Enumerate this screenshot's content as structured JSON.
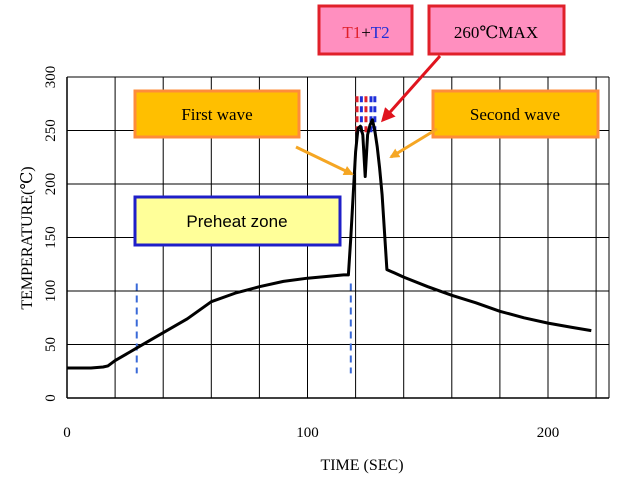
{
  "chart_data": {
    "type": "line",
    "title": "",
    "xlabel": "TIME (SEC)",
    "ylabel": "TEMPERATURE(℃)",
    "xlim": [
      0,
      220
    ],
    "ylim": [
      0,
      300
    ],
    "x_ticks": [
      0,
      100,
      200
    ],
    "y_ticks": [
      0,
      50,
      100,
      150,
      200,
      250,
      300
    ],
    "grid": true,
    "series": [
      {
        "name": "",
        "x": [
          0,
          5,
          10,
          15,
          17,
          20,
          30,
          40,
          50,
          60,
          70,
          75,
          80,
          90,
          100,
          105,
          110,
          115,
          117,
          118,
          119,
          120,
          121,
          122,
          123,
          124,
          125,
          126,
          127,
          128,
          129,
          130,
          131,
          133,
          135,
          136,
          140,
          150,
          160,
          170,
          180,
          190,
          200,
          210,
          218
        ],
        "y": [
          28,
          28,
          28,
          29,
          30,
          35,
          48,
          61,
          74,
          90,
          98,
          101,
          104,
          109,
          112,
          113,
          114,
          115,
          115,
          150,
          190,
          230,
          252,
          254,
          246,
          207,
          246,
          255,
          260,
          250,
          235,
          215,
          190,
          120,
          118,
          117,
          113,
          104,
          96,
          89,
          81,
          75,
          70,
          66,
          63
        ],
        "color": "#000000"
      }
    ],
    "annotations": {
      "first_wave": "First wave",
      "second_wave": "Second wave",
      "preheat_zone": "Preheat zone",
      "t1": "T1",
      "plus": "+",
      "t2": "T2",
      "max": "260℃MAX"
    },
    "colors": {
      "wave_box_fill": "#ffbf00",
      "wave_box_border": "#ff8c3a",
      "preheat_fill": "#ffff99",
      "preheat_border": "#1f1fc8",
      "t_box_fill": "#ff8fbf",
      "t_box_border": "#e0202a",
      "arrow_orange": "#f5a623",
      "arrow_red": "#e0141e",
      "t1_color": "#e0202a",
      "t2_color": "#1f2fd8",
      "marker_blue": "#3a6ad8"
    }
  }
}
